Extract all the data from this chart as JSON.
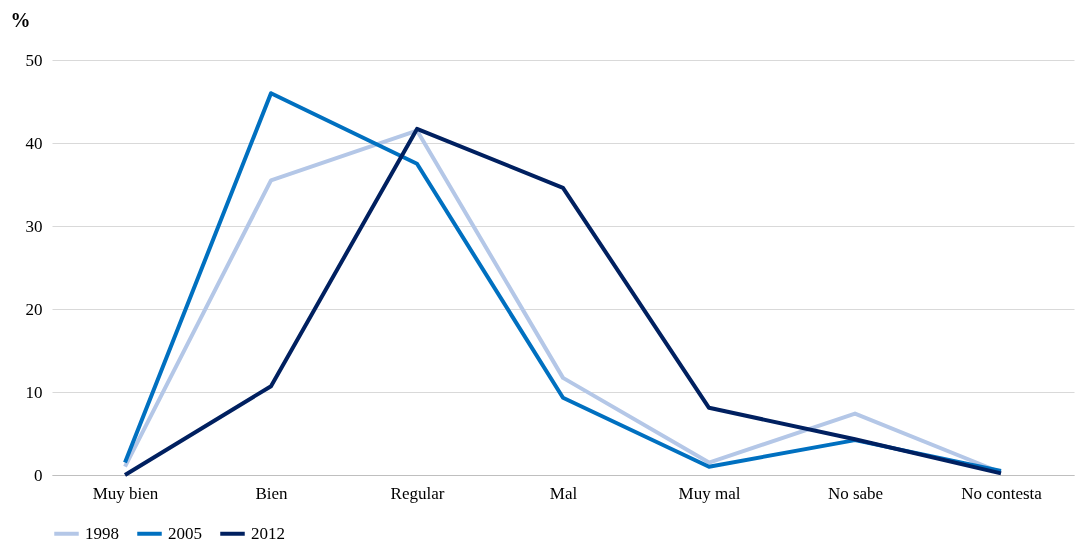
{
  "chart_data": {
    "type": "line",
    "ylabel": "%",
    "categories": [
      "Muy bien",
      "Bien",
      "Regular",
      "Mal",
      "Muy mal",
      "No sabe",
      "No contesta"
    ],
    "series": [
      {
        "name": "1998",
        "color": "#b4c7e7",
        "values": [
          1.0,
          35.5,
          41.5,
          11.7,
          1.5,
          7.4,
          0.3
        ]
      },
      {
        "name": "2005",
        "color": "#0070c0",
        "values": [
          1.5,
          46.0,
          37.5,
          9.3,
          1.0,
          4.2,
          0.5
        ]
      },
      {
        "name": "2012",
        "color": "#002060",
        "values": [
          0.0,
          10.7,
          41.7,
          34.6,
          8.1,
          4.3,
          0.2
        ]
      }
    ],
    "ylim": [
      0,
      50
    ],
    "yticks": [
      0,
      10,
      20,
      30,
      40,
      50
    ],
    "grid": "y",
    "legend": "bottom",
    "marker": "none",
    "line_style": "solid"
  }
}
